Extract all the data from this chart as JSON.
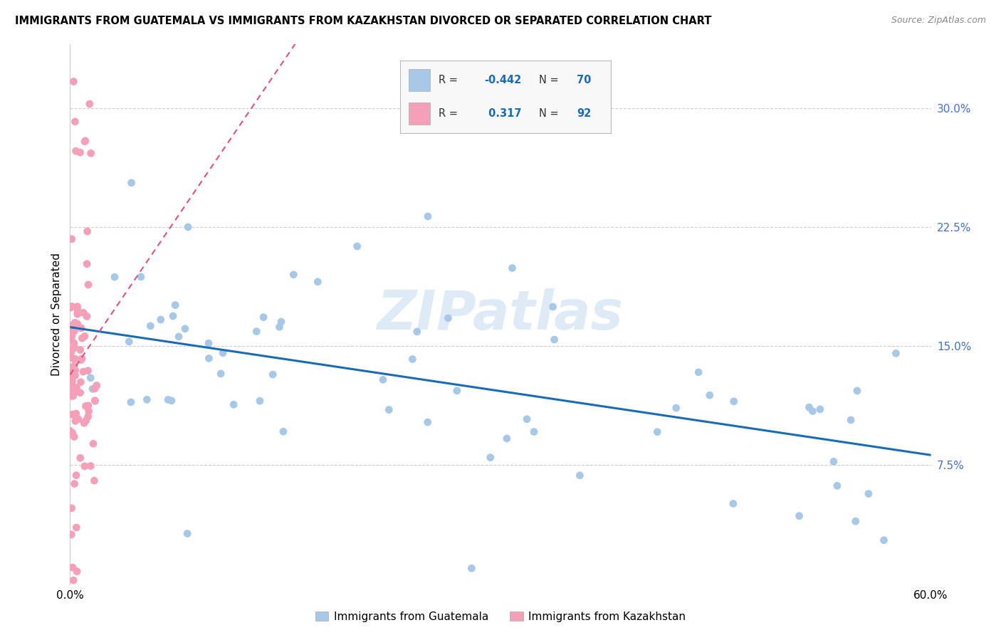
{
  "title": "IMMIGRANTS FROM GUATEMALA VS IMMIGRANTS FROM KAZAKHSTAN DIVORCED OR SEPARATED CORRELATION CHART",
  "source": "Source: ZipAtlas.com",
  "ylabel": "Divorced or Separated",
  "watermark": "ZIPatlas",
  "color_guatemala": "#a8c8e8",
  "color_kazakhstan": "#f4a0b8",
  "color_line_guatemala": "#1a6bb5",
  "color_line_kazakhstan": "#e05080",
  "color_right_tick": "#4472C4",
  "xlim": [
    0.0,
    0.6
  ],
  "ylim": [
    0.0,
    0.34
  ],
  "ytick_right_labels": [
    "7.5%",
    "15.0%",
    "22.5%",
    "30.0%"
  ],
  "ytick_right_values": [
    0.075,
    0.15,
    0.225,
    0.3
  ],
  "legend_blue_r": "-0.442",
  "legend_blue_n": "70",
  "legend_pink_r": "0.317",
  "legend_pink_n": "92"
}
